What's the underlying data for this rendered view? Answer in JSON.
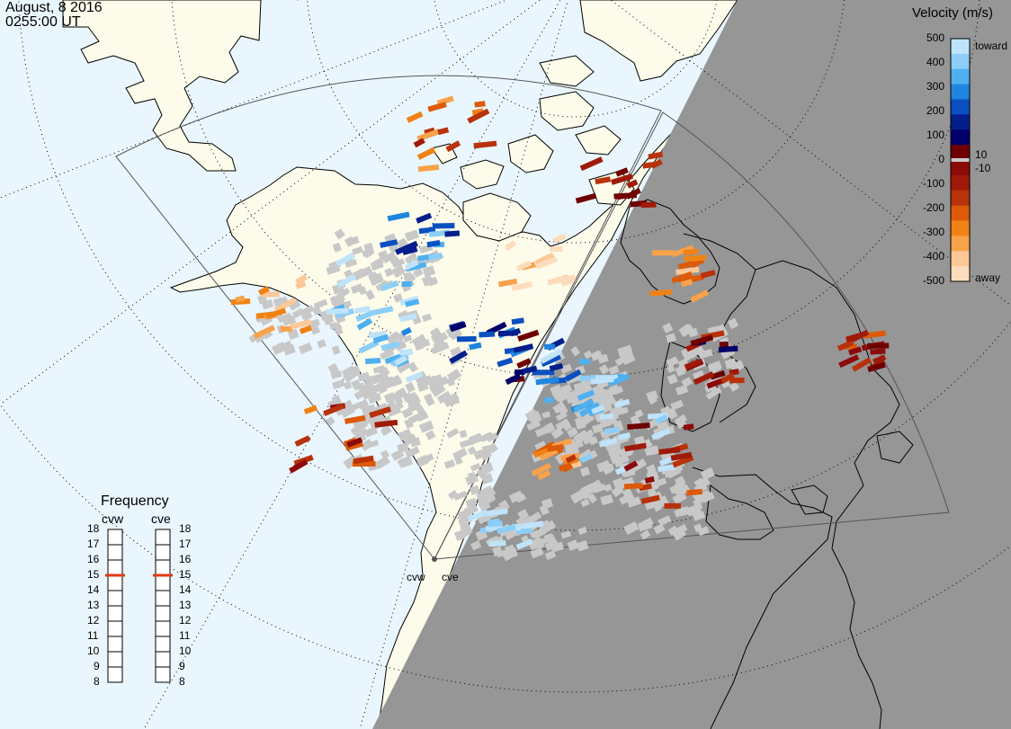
{
  "header": {
    "date": "August, 8 2016",
    "time": "0255:00 UT"
  },
  "legend": {
    "title": "Velocity (m/s)",
    "ticks": [
      "500",
      "400",
      "300",
      "200",
      "100",
      "0",
      "-100",
      "-200",
      "-300",
      "-400",
      "-500"
    ],
    "side_labels": {
      "toward": "toward",
      "away": "away",
      "pos": "10",
      "neg": "-10"
    },
    "colors": [
      "#bfe3fa",
      "#8ccef7",
      "#4fb0f0",
      "#1f86e0",
      "#0a50c0",
      "#041e8c",
      "#00006a",
      "#6e0000",
      "#8c0a0a",
      "#a01a0a",
      "#b8320a",
      "#dc5a0a",
      "#f08214",
      "#f8a24a",
      "#fbc896",
      "#fddcbc"
    ]
  },
  "frequency": {
    "title": "Frequency",
    "radars": [
      {
        "name": "cvw",
        "value": 15
      },
      {
        "name": "cve",
        "value": 15
      }
    ],
    "ticks": [
      "18",
      "17",
      "16",
      "15",
      "14",
      "13",
      "12",
      "11",
      "10",
      "9",
      "8"
    ]
  },
  "radar_labels": [
    "cvw",
    "cve"
  ],
  "colors": {
    "ocean": "#eaf6fd",
    "land": "#fdfbea",
    "night": "#969696",
    "ground_scatter": "#c8c8c8",
    "marker": "#e03c14"
  }
}
